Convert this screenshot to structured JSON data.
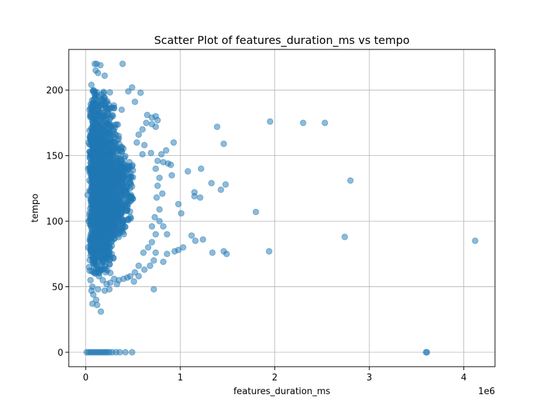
{
  "chart_data": {
    "type": "scatter",
    "title": "Scatter Plot of features_duration_ms vs tempo",
    "xlabel": "features_duration_ms",
    "ylabel": "tempo",
    "x_offset_label": "1e6",
    "xlim": [
      -180000,
      4330000
    ],
    "ylim": [
      -11,
      231
    ],
    "x_ticks": [
      {
        "value": 0,
        "label": "0"
      },
      {
        "value": 1000000,
        "label": "1"
      },
      {
        "value": 2000000,
        "label": "2"
      },
      {
        "value": 3000000,
        "label": "3"
      },
      {
        "value": 4000000,
        "label": "4"
      }
    ],
    "y_ticks": [
      {
        "value": 0,
        "label": "0"
      },
      {
        "value": 50,
        "label": "50"
      },
      {
        "value": 100,
        "label": "100"
      },
      {
        "value": 150,
        "label": "150"
      },
      {
        "value": 200,
        "label": "200"
      }
    ],
    "grid": true,
    "color": "#1f77b4",
    "alpha": 0.5,
    "points": [
      [
        1950000,
        176
      ],
      [
        2300000,
        175
      ],
      [
        2530000,
        175
      ],
      [
        1390000,
        172
      ],
      [
        1460000,
        159
      ],
      [
        930000,
        160
      ],
      [
        850000,
        154
      ],
      [
        1220000,
        140
      ],
      [
        1080000,
        138
      ],
      [
        2800000,
        131
      ],
      [
        1330000,
        129
      ],
      [
        1480000,
        128
      ],
      [
        1150000,
        122
      ],
      [
        1150000,
        119
      ],
      [
        1430000,
        124
      ],
      [
        1210000,
        118
      ],
      [
        980000,
        113
      ],
      [
        1010000,
        106
      ],
      [
        1800000,
        107
      ],
      [
        2740000,
        88
      ],
      [
        4120000,
        85
      ],
      [
        1120000,
        89
      ],
      [
        1160000,
        85
      ],
      [
        1240000,
        86
      ],
      [
        1030000,
        80
      ],
      [
        980000,
        78
      ],
      [
        940000,
        77
      ],
      [
        1340000,
        76
      ],
      [
        1460000,
        77
      ],
      [
        1490000,
        75
      ],
      [
        1940000,
        77
      ],
      [
        860000,
        75
      ],
      [
        820000,
        69
      ],
      [
        720000,
        48
      ],
      [
        160000,
        31
      ],
      [
        120000,
        36
      ],
      [
        70000,
        37
      ],
      [
        110000,
        40
      ],
      [
        80000,
        44
      ],
      [
        60000,
        47
      ],
      [
        200000,
        47
      ],
      [
        3600000,
        0
      ],
      [
        3610000,
        0
      ],
      [
        490000,
        0
      ],
      [
        420000,
        0
      ],
      [
        360000,
        0
      ],
      [
        320000,
        0
      ],
      [
        280000,
        0
      ],
      [
        250000,
        0
      ],
      [
        230000,
        0
      ],
      [
        210000,
        0
      ],
      [
        190000,
        0
      ],
      [
        170000,
        0
      ],
      [
        150000,
        0
      ],
      [
        130000,
        0
      ],
      [
        110000,
        0
      ],
      [
        90000,
        0
      ],
      [
        70000,
        0
      ],
      [
        50000,
        0
      ],
      [
        30000,
        0
      ],
      [
        10000,
        0
      ],
      [
        95000,
        220
      ],
      [
        115000,
        220
      ],
      [
        390000,
        220
      ],
      [
        155000,
        219
      ],
      [
        105000,
        215
      ],
      [
        130000,
        213
      ],
      [
        200000,
        211
      ],
      [
        60000,
        204
      ],
      [
        490000,
        202
      ],
      [
        580000,
        198
      ],
      [
        520000,
        191
      ],
      [
        450000,
        199
      ],
      [
        380000,
        185
      ],
      [
        650000,
        181
      ],
      [
        700000,
        179
      ],
      [
        740000,
        180
      ],
      [
        760000,
        177
      ],
      [
        740000,
        172
      ],
      [
        700000,
        174
      ],
      [
        640000,
        175
      ],
      [
        600000,
        170
      ],
      [
        560000,
        166
      ],
      [
        540000,
        160
      ],
      [
        620000,
        158
      ],
      [
        600000,
        151
      ],
      [
        690000,
        152
      ],
      [
        800000,
        151
      ],
      [
        760000,
        146
      ],
      [
        740000,
        140
      ],
      [
        820000,
        145
      ],
      [
        870000,
        144
      ],
      [
        900000,
        143
      ],
      [
        910000,
        135
      ],
      [
        780000,
        133
      ],
      [
        760000,
        127
      ],
      [
        810000,
        121
      ],
      [
        750000,
        118
      ],
      [
        780000,
        109
      ],
      [
        730000,
        103
      ],
      [
        700000,
        96
      ],
      [
        780000,
        100
      ],
      [
        820000,
        96
      ],
      [
        860000,
        90
      ],
      [
        740000,
        90
      ],
      [
        700000,
        84
      ],
      [
        660000,
        80
      ],
      [
        610000,
        76
      ],
      [
        740000,
        76
      ],
      [
        720000,
        70
      ],
      [
        680000,
        66
      ],
      [
        620000,
        63
      ],
      [
        560000,
        66
      ],
      [
        520000,
        61
      ],
      [
        560000,
        58
      ],
      [
        470000,
        58
      ],
      [
        510000,
        54
      ],
      [
        440000,
        57
      ],
      [
        400000,
        56
      ],
      [
        350000,
        55
      ],
      [
        300000,
        56
      ],
      [
        260000,
        53
      ],
      [
        220000,
        52
      ],
      [
        180000,
        55
      ],
      [
        140000,
        58
      ],
      [
        100000,
        60
      ],
      [
        40000,
        185
      ],
      [
        30000,
        160
      ],
      [
        25000,
        140
      ],
      [
        20000,
        120
      ],
      [
        30000,
        100
      ],
      [
        25000,
        80
      ],
      [
        35000,
        65
      ],
      [
        50000,
        55
      ],
      [
        70000,
        50
      ],
      [
        130000,
        48
      ],
      [
        250000,
        48
      ],
      [
        330000,
        52
      ]
    ]
  }
}
